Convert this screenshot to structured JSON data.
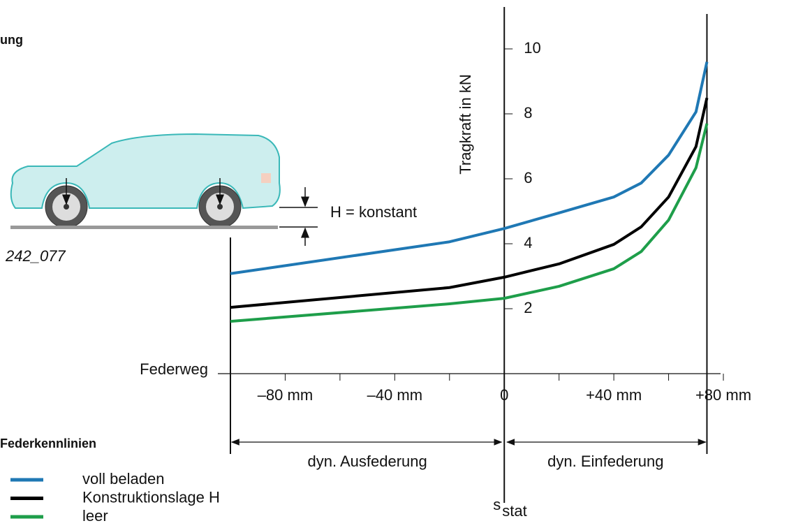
{
  "chart_data": {
    "type": "line",
    "title": "ung",
    "figure_id": "242_077",
    "annotation": "H = konstant",
    "xlabel": "Federweg",
    "ylabel": "Tragkraft in kN",
    "range_left": "dyn. Ausfederung",
    "range_right": "dyn. Einfederung",
    "s_label": "s",
    "s_sub": "stat",
    "legend_title": "Federkennlinien",
    "x": [
      -100,
      -20,
      0,
      20,
      40,
      50,
      60,
      70,
      74
    ],
    "series": [
      {
        "name": "voll beladen",
        "color": "#1f78b4",
        "values": [
          3.08,
          4.06,
          4.47,
          4.95,
          5.44,
          5.87,
          6.73,
          8.06,
          9.6
        ]
      },
      {
        "name": "Konstruktionslage H",
        "color": "#000000",
        "values": [
          2.04,
          2.65,
          2.97,
          3.38,
          3.98,
          4.52,
          5.44,
          6.99,
          8.49
        ]
      },
      {
        "name": "leer",
        "color": "#1e9e4a",
        "values": [
          1.61,
          2.15,
          2.32,
          2.69,
          3.23,
          3.76,
          4.73,
          6.34,
          7.7
        ]
      }
    ],
    "xlim": [
      -100,
      80
    ],
    "xticks": [
      {
        "value": -80,
        "label": "–80 mm"
      },
      {
        "value": -40,
        "label": "–40 mm"
      },
      0,
      {
        "value": 40,
        "label": "+40 mm"
      },
      {
        "value": 80,
        "label": "+80 mm"
      }
    ],
    "xminorticks": [
      -60,
      -20,
      20,
      60
    ],
    "ylim": [
      0,
      11
    ],
    "yticks": [
      2,
      4,
      6,
      8,
      10
    ]
  }
}
